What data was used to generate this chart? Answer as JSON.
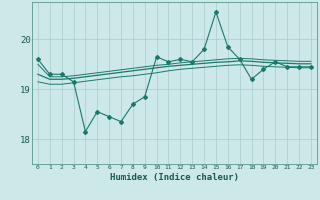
{
  "title": "",
  "xlabel": "Humidex (Indice chaleur)",
  "ylabel": "",
  "background_color": "#cce8e8",
  "grid_color": "#aacccc",
  "line_color": "#1a7a6a",
  "xlim": [
    -0.5,
    23.5
  ],
  "ylim": [
    17.5,
    20.75
  ],
  "yticks": [
    18,
    19,
    20
  ],
  "xticks": [
    0,
    1,
    2,
    3,
    4,
    5,
    6,
    7,
    8,
    9,
    10,
    11,
    12,
    13,
    14,
    15,
    16,
    17,
    18,
    19,
    20,
    21,
    22,
    23
  ],
  "series1": [
    19.6,
    19.3,
    19.3,
    19.15,
    18.15,
    18.55,
    18.45,
    18.35,
    18.7,
    18.85,
    19.65,
    19.55,
    19.6,
    19.55,
    19.8,
    20.55,
    19.85,
    19.6,
    19.2,
    19.4,
    19.55,
    19.45,
    19.45,
    19.45
  ],
  "series2": [
    19.3,
    19.2,
    19.2,
    19.22,
    19.25,
    19.28,
    19.31,
    19.34,
    19.37,
    19.4,
    19.43,
    19.46,
    19.48,
    19.5,
    19.52,
    19.54,
    19.55,
    19.57,
    19.56,
    19.54,
    19.53,
    19.52,
    19.51,
    19.51
  ],
  "series3": [
    19.15,
    19.1,
    19.1,
    19.13,
    19.16,
    19.19,
    19.22,
    19.25,
    19.27,
    19.3,
    19.33,
    19.37,
    19.4,
    19.42,
    19.44,
    19.46,
    19.48,
    19.49,
    19.48,
    19.46,
    19.45,
    19.44,
    19.43,
    19.43
  ],
  "series4": [
    19.5,
    19.25,
    19.25,
    19.27,
    19.3,
    19.33,
    19.36,
    19.39,
    19.42,
    19.45,
    19.48,
    19.5,
    19.53,
    19.55,
    19.57,
    19.59,
    19.61,
    19.62,
    19.61,
    19.59,
    19.58,
    19.57,
    19.56,
    19.56
  ]
}
